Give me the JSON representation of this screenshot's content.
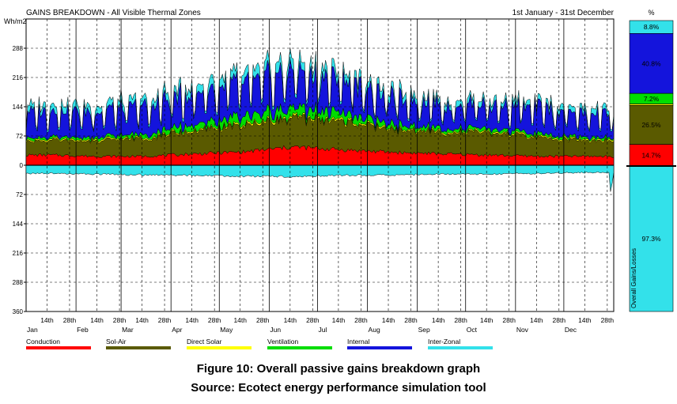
{
  "chart_data": {
    "type": "area",
    "title": "GAINS BREAKDOWN - All Visible Thermal Zones",
    "date_range": "1st January - 31st December",
    "ylabel": "Wh/m2",
    "ylim": [
      -360,
      360
    ],
    "y_tick_values": [
      288,
      216,
      144,
      72,
      0,
      -72,
      -144,
      -216,
      -288,
      -360
    ],
    "y_tick_labels": [
      "288",
      "216",
      "144",
      "72",
      "0",
      "72",
      "144",
      "216",
      "288",
      "360"
    ],
    "x_month_labels": [
      "Jan",
      "Feb",
      "Mar",
      "Apr",
      "May",
      "Jun",
      "Jul",
      "Aug",
      "Sep",
      "Oct",
      "Nov",
      "Dec"
    ],
    "x_day_labels": [
      "14th",
      "28th"
    ],
    "grid": true,
    "legend_position": "bottom",
    "series": [
      {
        "name": "Conduction",
        "color": "#ff0000",
        "monthly_avg": [
          25,
          22,
          22,
          28,
          33,
          45,
          38,
          32,
          28,
          25,
          22,
          22
        ]
      },
      {
        "name": "Sol-Air",
        "color": "#5a5a00",
        "monthly_avg": [
          35,
          38,
          45,
          55,
          65,
          70,
          70,
          55,
          52,
          55,
          45,
          38
        ]
      },
      {
        "name": "Direct Solar",
        "color": "#ffff00",
        "monthly_avg": [
          3,
          3,
          3,
          3,
          4,
          4,
          4,
          3,
          3,
          3,
          3,
          3
        ]
      },
      {
        "name": "Ventilation",
        "color": "#00dd00",
        "monthly_avg": [
          5,
          6,
          8,
          14,
          18,
          20,
          18,
          10,
          8,
          7,
          6,
          5
        ]
      },
      {
        "name": "Internal",
        "color": "#1414dc",
        "monthly_avg": [
          55,
          55,
          60,
          65,
          70,
          75,
          68,
          55,
          50,
          50,
          55,
          50
        ]
      },
      {
        "name": "Inter-Zonal",
        "color": "#33e1ea",
        "monthly_avg": [
          -20,
          -22,
          -24,
          -25,
          -27,
          -28,
          -25,
          -24,
          -22,
          -22,
          -20,
          -18
        ],
        "positive_monthly_avg": [
          14,
          14,
          15,
          18,
          20,
          22,
          18,
          15,
          13,
          12,
          12,
          12
        ]
      }
    ],
    "breakdown": {
      "header": "%",
      "side_label": "Overall Gains/Losses",
      "gains": [
        {
          "label": "8.8%",
          "value": 8.8,
          "color": "#33e1ea"
        },
        {
          "label": "40.8%",
          "value": 40.8,
          "color": "#1414dc"
        },
        {
          "label": "7.2%",
          "value": 7.2,
          "color": "#00dd00"
        },
        {
          "label": "",
          "value": 1.0,
          "color": "#ffff00"
        },
        {
          "label": "26.5%",
          "value": 26.5,
          "color": "#5a5a00"
        },
        {
          "label": "14.7%",
          "value": 14.7,
          "color": "#ff0000"
        }
      ],
      "losses": [
        {
          "label": "97.3%",
          "value": 97.3,
          "color": "#33e1ea"
        }
      ]
    }
  },
  "caption": {
    "line1": "Figure 10: Overall passive gains breakdown graph",
    "line2": "Source:  Ecotect energy performance simulation tool"
  }
}
